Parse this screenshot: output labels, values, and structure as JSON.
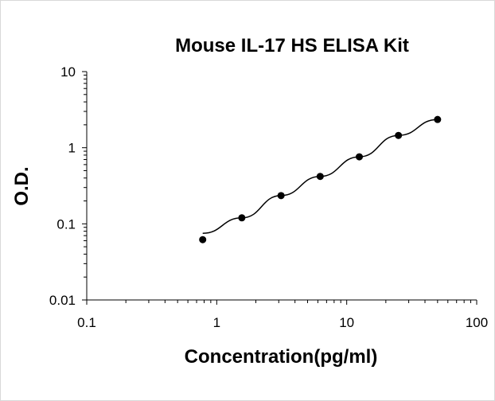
{
  "chart_data": {
    "type": "scatter",
    "title": "Mouse IL-17 HS ELISA Kit",
    "xlabel": "Concentration(pg/ml)",
    "ylabel": "O.D.",
    "x_scale": "log",
    "y_scale": "log",
    "xlim": [
      0.1,
      100
    ],
    "ylim": [
      0.01,
      10
    ],
    "x_ticks": [
      "0.1",
      "1",
      "10",
      "100"
    ],
    "y_ticks": [
      "0.01",
      "0.1",
      "1",
      "10"
    ],
    "grid": false,
    "series": [
      {
        "x": [
          0.78,
          1.56,
          3.125,
          6.25,
          12.5,
          25,
          50
        ],
        "y": [
          0.062,
          0.12,
          0.235,
          0.42,
          0.76,
          1.45,
          2.35
        ],
        "trendline": true
      }
    ]
  },
  "colors": {
    "axis": "#000000",
    "marker": "#000000",
    "line": "#000000",
    "border": "#d9d9d9"
  }
}
